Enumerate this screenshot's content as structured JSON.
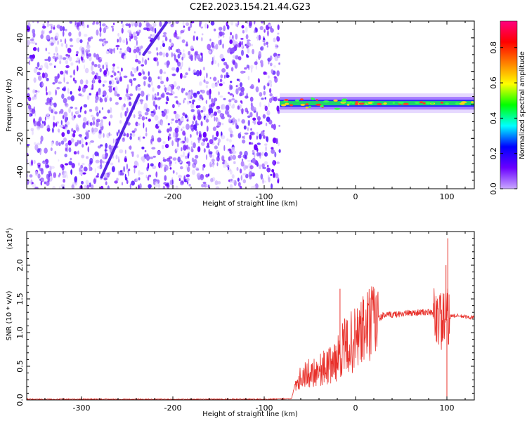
{
  "title": "C2E2.2023.154.21.44.G23",
  "chart_data": [
    {
      "type": "heatmap",
      "name": "spectrogram",
      "xlabel": "Height of straight line (km)",
      "ylabel": "Frequency (Hz)",
      "xlim": [
        -360,
        130
      ],
      "ylim": [
        -50,
        50
      ],
      "x_ticks": [
        -300,
        -200,
        -100,
        0,
        100
      ],
      "x_tick_labels": [
        "-300",
        "-200",
        "-100",
        "0",
        "100"
      ],
      "y_ticks": [
        -40,
        -20,
        0,
        20,
        40
      ],
      "y_tick_labels": [
        "-40",
        "-20",
        "0",
        "20",
        "40"
      ],
      "noise_region_x": [
        -360,
        -83
      ],
      "signal_line": {
        "x_start": -83,
        "x_end": 130,
        "frequency_hz": 1
      },
      "diagonal_streaks": [
        {
          "from": [
            -278,
            -43
          ],
          "to": [
            -237,
            6
          ]
        },
        {
          "from": [
            -232,
            30
          ],
          "to": [
            -207,
            49
          ]
        }
      ],
      "colorbar": {
        "label": "Normalized spectral amplitude",
        "range": [
          0,
          0.95
        ],
        "ticks": [
          0,
          0.2,
          0.4,
          0.6,
          0.8
        ],
        "tick_labels": [
          "0.0",
          "0.2",
          "0.4",
          "0.6",
          "0.8"
        ],
        "stops": [
          "#c9a8ff",
          "#6a00ff",
          "#0000ff",
          "#00ffff",
          "#00ff00",
          "#ffff00",
          "#ff7f00",
          "#ff0000",
          "#ff0080"
        ]
      }
    },
    {
      "type": "line",
      "name": "snr",
      "xlabel": "Height of straight line (km)",
      "ylabel": "SNR (10 * v/v)",
      "y_exponent_label": "(x10",
      "y_exponent_power": "4",
      "y_exponent_close": ")",
      "xlim": [
        -360,
        130
      ],
      "ylim": [
        0,
        2.5
      ],
      "x_ticks": [
        -300,
        -200,
        -100,
        0,
        100
      ],
      "x_tick_labels": [
        "-300",
        "-200",
        "-100",
        "0",
        "100"
      ],
      "y_ticks": [
        0,
        0.5,
        1.0,
        1.5,
        2.0
      ],
      "y_tick_labels": [
        "0.0",
        "0.5",
        "1.0",
        "1.5",
        "2.0"
      ],
      "color": "#e8302a",
      "envelope": {
        "x": [
          -360,
          -100,
          -70,
          -66,
          -60,
          -50,
          -40,
          -30,
          -20,
          -15,
          -10,
          0,
          10,
          20,
          30,
          50,
          70,
          80,
          90,
          95,
          100,
          105,
          110,
          130
        ],
        "y": [
          0.01,
          0.01,
          0.02,
          0.25,
          0.35,
          0.4,
          0.45,
          0.5,
          0.6,
          0.75,
          0.8,
          0.9,
          1.05,
          1.15,
          1.25,
          1.28,
          1.3,
          1.3,
          1.25,
          1.15,
          1.2,
          1.25,
          1.25,
          1.22
        ]
      },
      "spikes": [
        {
          "x": -17,
          "y": 1.65
        },
        {
          "x": 13,
          "y": 1.6
        },
        {
          "x": 99,
          "y": 2.0
        },
        {
          "x": 101,
          "y": 2.4
        },
        {
          "x": 100,
          "y": 0.02
        }
      ]
    }
  ]
}
